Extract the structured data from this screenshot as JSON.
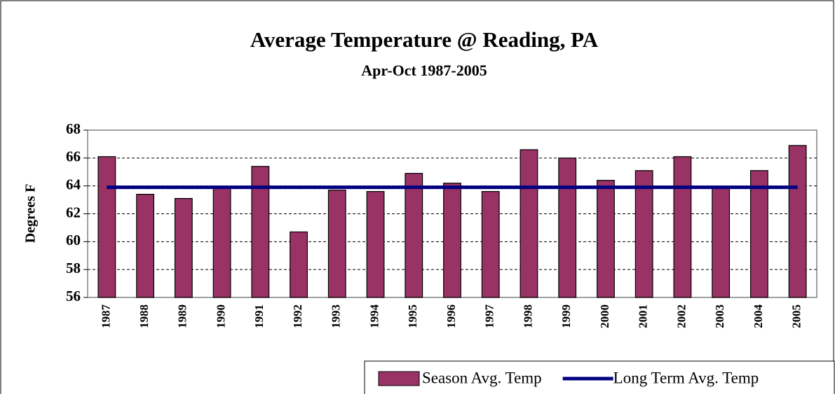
{
  "chart_data": {
    "type": "bar",
    "title": "Average Temperature @ Reading, PA",
    "subtitle": "Apr-Oct 1987-2005",
    "y_label": "Degrees F",
    "categories": [
      "1987",
      "1988",
      "1989",
      "1990",
      "1991",
      "1992",
      "1993",
      "1994",
      "1995",
      "1996",
      "1997",
      "1998",
      "1999",
      "2000",
      "2001",
      "2002",
      "2003",
      "2004",
      "2005"
    ],
    "series": [
      {
        "name": "Season Avg. Temp",
        "type": "bar",
        "color": "#993366",
        "values": [
          66.1,
          63.4,
          63.1,
          63.9,
          65.4,
          60.7,
          63.7,
          63.6,
          64.9,
          64.2,
          63.6,
          66.6,
          66.0,
          64.4,
          65.1,
          66.1,
          63.9,
          65.1,
          66.9
        ]
      },
      {
        "name": "Long Term Avg. Temp",
        "type": "line",
        "color": "#000080",
        "values": [
          63.9,
          63.9,
          63.9,
          63.9,
          63.9,
          63.9,
          63.9,
          63.9,
          63.9,
          63.9,
          63.9,
          63.9,
          63.9,
          63.9,
          63.9,
          63.9,
          63.9,
          63.9,
          63.9
        ]
      }
    ],
    "ylim": [
      56,
      68
    ],
    "yticks": [
      56,
      58,
      60,
      62,
      64,
      66,
      68
    ],
    "grid": true,
    "legend": "bottom-right"
  }
}
